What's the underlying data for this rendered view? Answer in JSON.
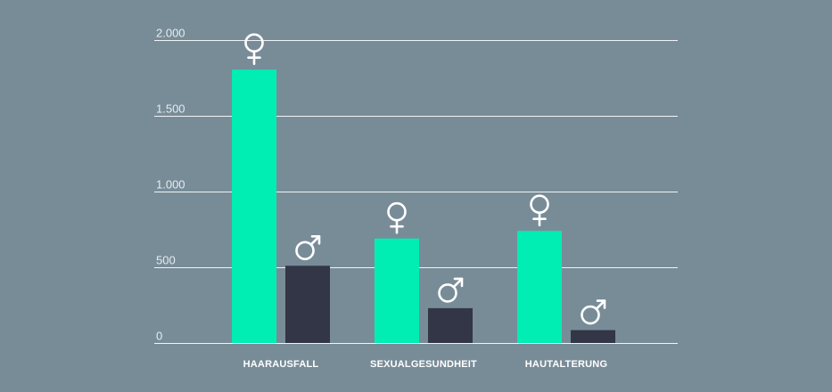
{
  "chart_data": {
    "type": "bar",
    "title": "",
    "xlabel": "",
    "ylabel": "",
    "ylim": [
      0,
      2000
    ],
    "yticks": [
      0,
      500,
      1000,
      1500,
      2000
    ],
    "ytick_labels": [
      "0",
      "500",
      "1.000",
      "1.500",
      "2.000"
    ],
    "grid": true,
    "categories": [
      "HAARAUSFALL",
      "SEXUALGESUNDHEIT",
      "HAUTALTERUNG"
    ],
    "series": [
      {
        "name": "female",
        "symbol": "female-symbol-icon",
        "color": "#00edb3",
        "values": [
          1805,
          690,
          740
        ]
      },
      {
        "name": "male",
        "symbol": "male-symbol-icon",
        "color": "#323646",
        "values": [
          510,
          230,
          85
        ]
      }
    ]
  }
}
